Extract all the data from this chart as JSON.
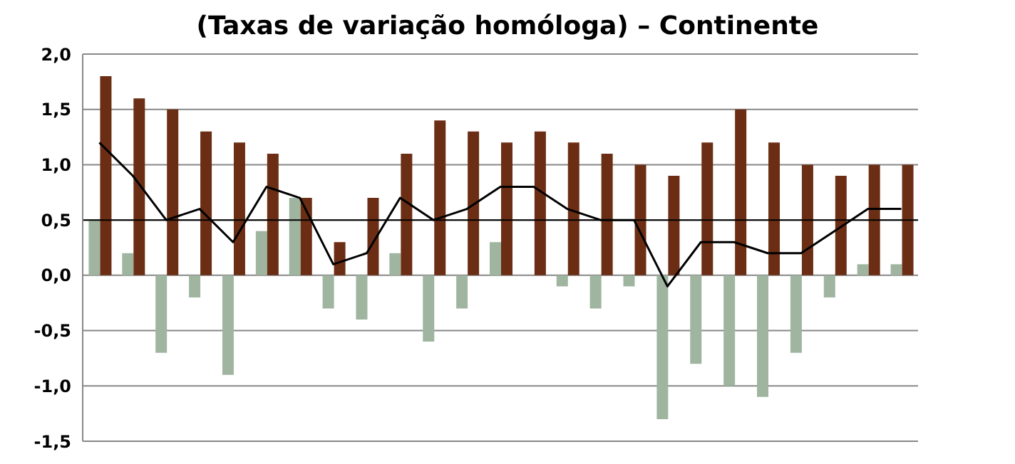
{
  "chart_data": {
    "type": "bar",
    "title": "(Taxas de variação homóloga) – Continente",
    "categories": [
      null,
      null,
      null,
      null,
      null,
      null,
      null,
      null,
      null,
      null,
      null,
      null,
      null,
      null,
      null,
      null,
      null,
      null,
      null,
      null,
      null,
      null,
      null,
      null,
      null
    ],
    "series": [
      {
        "color": "#9fb5a0",
        "values": [
          0.5,
          0.2,
          -0.7,
          -0.2,
          -0.9,
          0.4,
          0.7,
          -0.3,
          -0.4,
          0.2,
          -0.6,
          -0.3,
          0.3,
          0,
          -0.1,
          -0.3,
          -0.1,
          -1.3,
          -0.8,
          -1.0,
          -1.1,
          -0.7,
          -0.2,
          0.1,
          0.1
        ]
      },
      {
        "color": "#6b2e14",
        "values": [
          1.8,
          1.6,
          1.5,
          1.3,
          1.2,
          1.1,
          0.7,
          0.3,
          0.7,
          1.1,
          1.4,
          1.3,
          1.2,
          1.3,
          1.2,
          1.1,
          1.0,
          0.9,
          1.2,
          1.5,
          1.2,
          1.0,
          0.9,
          1.0,
          1.0
        ]
      },
      {
        "type": "line",
        "color": "#000000",
        "values": [
          1.2,
          0.9,
          0.5,
          0.6,
          0.3,
          0.8,
          0.7,
          0.1,
          0.2,
          0.7,
          0.5,
          0.6,
          0.8,
          0.8,
          0.6,
          0.5,
          0.5,
          -0.1,
          0.3,
          0.3,
          0.2,
          0.2,
          0.4,
          0.6,
          0.6
        ]
      }
    ],
    "ylim": [
      -1.5,
      2
    ],
    "yticks": [
      {
        "value": -1.5,
        "label": "-1,5"
      },
      {
        "value": -1,
        "label": "-1,0"
      },
      {
        "value": -0.5,
        "label": "-0,5"
      },
      {
        "value": 0,
        "label": "0,0"
      },
      {
        "value": 0.5,
        "label": "0,5"
      },
      {
        "value": 1,
        "label": "1,0"
      },
      {
        "value": 1.5,
        "label": "1,5"
      },
      {
        "value": 2,
        "label": "2,0"
      }
    ],
    "grid": "y",
    "legend": false,
    "marker": "none",
    "line_style": "solid",
    "tick_labels": "y",
    "ref_lines": [
      {
        "axis": "y",
        "value": 0.5,
        "color": "#000000"
      }
    ]
  }
}
